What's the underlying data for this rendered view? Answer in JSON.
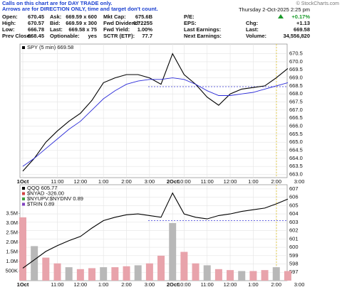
{
  "header": {
    "notes": [
      "Calls on this chart are for DAY TRADE only.",
      "Arrows are for DIRECTION ONLY, time and target don't count."
    ],
    "copyright": "© StockCharts.com",
    "date": "Thursday 2-Oct-2025 2:25 pm",
    "quote": [
      {
        "label": "Open:",
        "value": "670.45"
      },
      {
        "label": "High:",
        "value": "670.57"
      },
      {
        "label": "Low:",
        "value": "666.78"
      },
      {
        "label": "Prev Close:",
        "value": "668.45"
      },
      {
        "label": "Ask:",
        "value": "669.59 x 600"
      },
      {
        "label": "Bid:",
        "value": "669.59 x 300"
      },
      {
        "label": "Last:",
        "value": "669.58 x 75"
      },
      {
        "label": "Optionable:",
        "value": "yes"
      },
      {
        "label": "Mkt Cap:",
        "value": "675.6B"
      },
      {
        "label": "Fwd Dividend:",
        "value": "6.72255"
      },
      {
        "label": "Fwd Yield:",
        "value": "1.00%"
      },
      {
        "label": "SCTR (ETF):",
        "value": "77.7"
      },
      {
        "label": "P/E:"
      },
      {
        "label": "EPS:"
      },
      {
        "label": "Last Earnings:"
      },
      {
        "label": "Next Earnings:"
      },
      {
        "value": "+0.17%"
      },
      {
        "label": "Chg:",
        "value": "+1.13"
      },
      {
        "label": "Last:",
        "value": "669.58"
      },
      {
        "label": "Volume:",
        "value": "34,556,820"
      }
    ]
  },
  "chart_data": [
    {
      "type": "line",
      "categories": [
        "1Oct",
        null,
        null,
        "11:00",
        null,
        "12:00",
        null,
        "1:00",
        null,
        "2:00",
        null,
        "3:00",
        null,
        "2Oct",
        "10:00",
        null,
        "11:00",
        null,
        "12:00",
        null,
        "1:00",
        null,
        "2:00",
        null,
        "3:00"
      ],
      "series": [
        {
          "name": "SPY (5 min) 669.58",
          "color": "#000000",
          "values": [
            663.2,
            664.0,
            665.0,
            665.7,
            666.3,
            666.8,
            667.6,
            668.7,
            669.0,
            669.2,
            669.2,
            669.0,
            668.6,
            670.5,
            669.2,
            668.6,
            667.8,
            667.3,
            668.0,
            668.3,
            668.4,
            668.5,
            669.0,
            669.58,
            null
          ]
        },
        {
          "color": "#2a2ad8",
          "values": [
            663.5,
            664.0,
            664.6,
            665.2,
            665.8,
            666.3,
            667.0,
            667.7,
            668.2,
            668.6,
            668.8,
            668.9,
            668.9,
            669.0,
            668.9,
            668.6,
            668.2,
            667.9,
            667.9,
            668.0,
            668.1,
            668.3,
            668.5,
            668.7,
            null
          ]
        }
      ],
      "ylim": [
        662.8,
        671.1
      ],
      "yticks": [
        {
          "value": 663,
          "label": "663.0"
        },
        663.5,
        {
          "value": 664,
          "label": "664.0"
        },
        664.5,
        {
          "value": 665,
          "label": "665.0"
        },
        665.5,
        {
          "value": 666,
          "label": "666.0"
        },
        666.5,
        {
          "value": 667,
          "label": "667.0"
        },
        667.5,
        {
          "value": 668,
          "label": "668.0"
        },
        668.5,
        {
          "value": 669,
          "label": "669.0"
        },
        669.5,
        {
          "value": 670,
          "label": "670.0"
        },
        670.5
      ],
      "hline": 668.45,
      "grid": true
    },
    {
      "type": "bar",
      "categories": [
        "1Oct",
        null,
        null,
        "11:00",
        null,
        "12:00",
        null,
        "1:00",
        null,
        "2:00",
        null,
        "3:00",
        null,
        "2Oct",
        "10:00",
        null,
        "11:00",
        null,
        "12:00",
        null,
        "1:00",
        null,
        "2:00",
        null,
        "3:00"
      ],
      "values": [
        3300000,
        1800000,
        1200000,
        900000,
        700000,
        600000,
        650000,
        700000,
        700000,
        750000,
        800000,
        900000,
        1300000,
        3000000,
        1500000,
        900000,
        800000,
        600000,
        550000,
        500000,
        500000,
        550000,
        700000,
        500000,
        null
      ],
      "color": "#e8a3ab",
      "ylim": [
        0,
        5000000
      ],
      "yticks": [
        {
          "value": 500000,
          "label": "500K"
        },
        {
          "value": 1000000,
          "label": "1.0M"
        },
        {
          "value": 1500000,
          "label": "1.5M"
        },
        {
          "value": 2000000,
          "label": "2.0M"
        },
        {
          "value": 2500000,
          "label": "2.5M"
        },
        {
          "value": 3000000,
          "label": "3.0M"
        },
        {
          "value": 3500000,
          "label": "3.5M"
        }
      ],
      "series": [
        {
          "name": "QQQ 605.77",
          "color": "#000000",
          "axis": "y2",
          "values": [
            597.5,
            598.5,
            599.5,
            600.2,
            600.8,
            601.3,
            602.3,
            603.2,
            603.6,
            603.9,
            604.0,
            603.8,
            603.6,
            606.5,
            604.0,
            603.6,
            603.4,
            603.8,
            604.0,
            604.3,
            604.5,
            604.7,
            605.2,
            605.77,
            null
          ]
        }
      ],
      "y2lim": [
        596,
        607.5
      ],
      "y2ticks": [
        597,
        598,
        599,
        600,
        601,
        602,
        603,
        604,
        605,
        606,
        607
      ],
      "hline": 603.2,
      "annotations": [
        "$NYAD -326.00",
        "$NYUPV:$NYDNV 0.89",
        "$TRIN 0.89"
      ],
      "grid": true
    }
  ]
}
